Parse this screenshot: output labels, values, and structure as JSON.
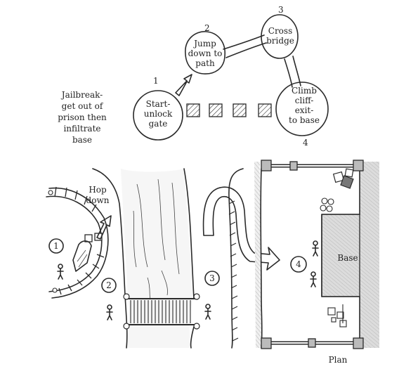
{
  "caption": "Jailbreak-\nget out of\nprison then\ninfiltrate\nbase",
  "flow_steps": [
    {
      "number": "1",
      "text": "Start-\nunlock\ngate"
    },
    {
      "number": "2",
      "text": "Jump\ndown to\npath"
    },
    {
      "number": "3",
      "text": "Cross\nbridge"
    },
    {
      "number": "4",
      "text": "Climb\ncliff-\nexit-\nto base"
    }
  ],
  "map": {
    "hop_label": "Hop\ndown",
    "markers": [
      "1",
      "2",
      "3",
      "4"
    ],
    "base_label": "Base",
    "plan_label": "Plan"
  }
}
